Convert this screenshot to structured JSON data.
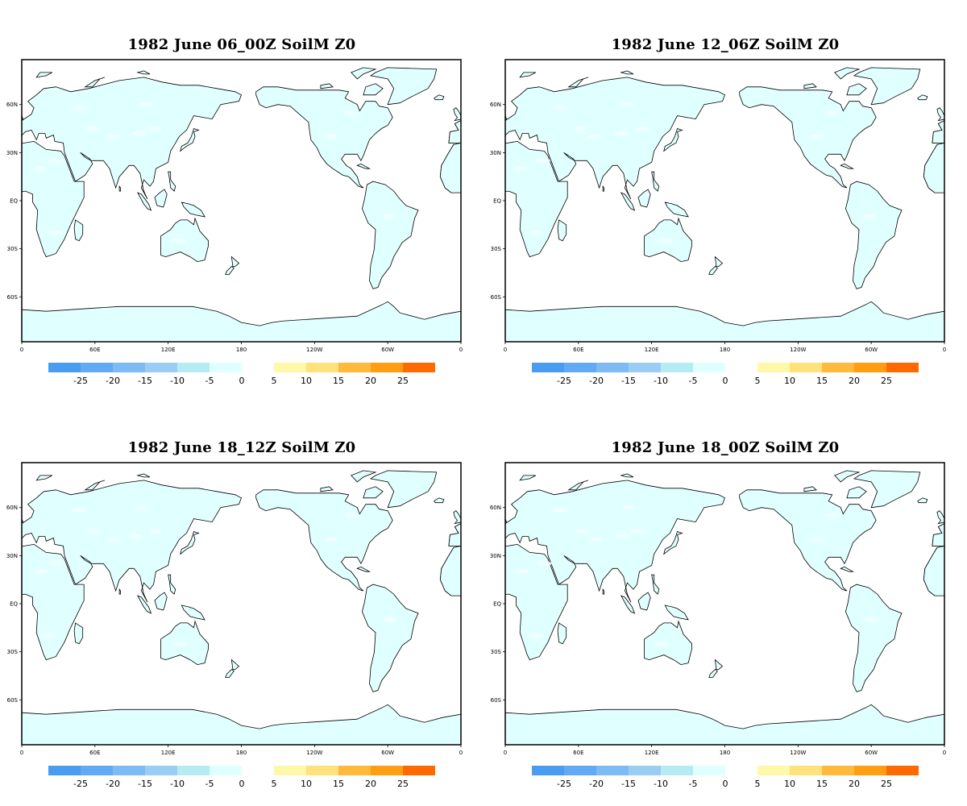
{
  "colors": {
    "land": "#e0ffff",
    "land_light": "#f2ffff",
    "coast": "#000000",
    "frame": "#000000"
  },
  "axes": {
    "lat_labels": [
      "60N",
      "30N",
      "EQ",
      "30S",
      "60S"
    ],
    "lon_labels": [
      "0",
      "60E",
      "120E",
      "180",
      "120W",
      "60W",
      "0"
    ]
  },
  "colorbar": {
    "blue_colors": [
      "#4a9cf0",
      "#63aaf4",
      "#7ebaf4",
      "#99cdf4",
      "#b5ecf4",
      "#e0ffff"
    ],
    "orange_colors": [
      "#fff8a8",
      "#ffe27c",
      "#ffba3c",
      "#ff9e12",
      "#ff6a00"
    ],
    "blue_labels": [
      "-25",
      "-20",
      "-15",
      "-10",
      "-5",
      "0"
    ],
    "orange_labels": [
      "5",
      "10",
      "15",
      "20",
      "25"
    ]
  },
  "panels": [
    {
      "title": "1982 June 06_00Z SoilM Z0"
    },
    {
      "title": "1982 June 12_06Z SoilM Z0"
    },
    {
      "title": "1982 June 18_12Z SoilM Z0"
    },
    {
      "title": "1982 June 18_00Z SoilM Z0"
    }
  ]
}
